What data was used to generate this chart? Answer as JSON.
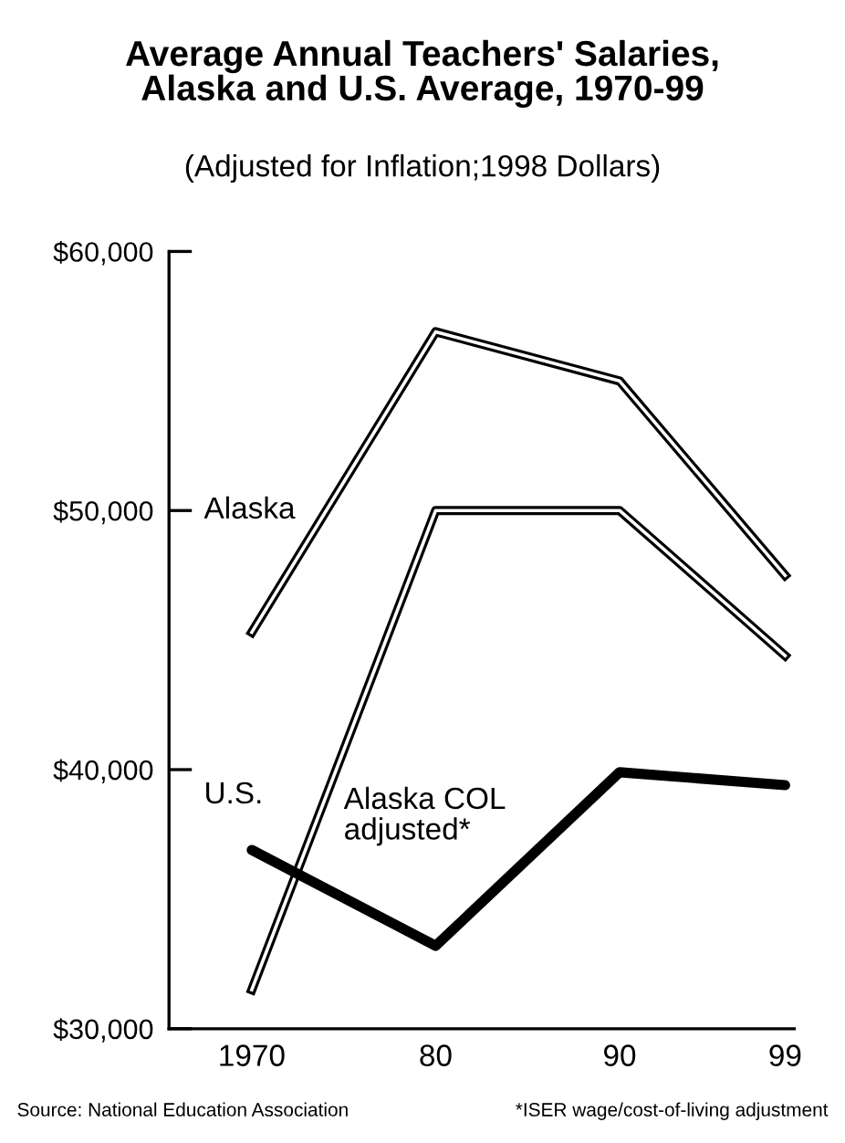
{
  "chart_data": {
    "type": "line",
    "title": "Average Annual Teachers' Salaries,\nAlaska and U.S. Average, 1970-99",
    "subtitle": "(Adjusted for Inflation;1998 Dollars)",
    "x": [
      1970,
      1980,
      1990,
      1999
    ],
    "xlim": [
      1965.5,
      1999.5
    ],
    "xticks": [
      1970,
      {
        "value": 1980,
        "label": "80"
      },
      {
        "value": 1990,
        "label": "90"
      },
      {
        "value": 1999,
        "label": "99"
      }
    ],
    "ylim": [
      30000,
      60000
    ],
    "yticks": [
      {
        "value": 30000,
        "label": "$30,000"
      },
      {
        "value": 40000,
        "label": "$40,000"
      },
      {
        "value": 50000,
        "label": "$50,000"
      },
      {
        "value": 60000,
        "label": "$60,000"
      }
    ],
    "series": [
      {
        "name": "Alaska",
        "color": "#000000",
        "values": [
          45300,
          56900,
          55000,
          47500
        ]
      },
      {
        "name": "Alaska COL\nadjusted*",
        "color": "#000000",
        "values": [
          31500,
          50000,
          50000,
          44400
        ]
      },
      {
        "name": "U.S.",
        "color": "#000000",
        "values": [
          36900,
          33200,
          39900,
          39400
        ]
      }
    ],
    "annotations": [
      "Source: National Education Association",
      "*ISER wage/cost-of-living adjustment"
    ],
    "grid": false,
    "legend": false
  }
}
